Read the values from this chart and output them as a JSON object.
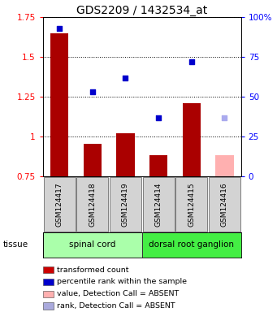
{
  "title": "GDS2209 / 1432534_at",
  "samples": [
    "GSM124417",
    "GSM124418",
    "GSM124419",
    "GSM124414",
    "GSM124415",
    "GSM124416"
  ],
  "bar_values": [
    1.65,
    0.955,
    1.02,
    0.885,
    1.21,
    0.885
  ],
  "bar_colors": [
    "#aa0000",
    "#aa0000",
    "#aa0000",
    "#aa0000",
    "#aa0000",
    "#ffb0b0"
  ],
  "dot_values": [
    1.68,
    1.28,
    1.37,
    1.115,
    1.47,
    1.115
  ],
  "dot_colors": [
    "#0000cc",
    "#0000cc",
    "#0000cc",
    "#0000cc",
    "#0000cc",
    "#aaaaee"
  ],
  "ylim_left": [
    0.75,
    1.75
  ],
  "ylim_right": [
    0,
    100
  ],
  "yticks_left": [
    0.75,
    1.0,
    1.25,
    1.5,
    1.75
  ],
  "yticks_right": [
    0,
    25,
    50,
    75,
    100
  ],
  "ytick_labels_left": [
    "0.75",
    "1",
    "1.25",
    "1.5",
    "1.75"
  ],
  "ytick_labels_right": [
    "0",
    "25",
    "50",
    "75",
    "100%"
  ],
  "baseline": 0.75,
  "groups": [
    {
      "label": "spinal cord",
      "indices": [
        0,
        1,
        2
      ],
      "color": "#aaffaa"
    },
    {
      "label": "dorsal root ganglion",
      "indices": [
        3,
        4,
        5
      ],
      "color": "#44ee44"
    }
  ],
  "tissue_label": "tissue",
  "legend_items": [
    {
      "color": "#cc0000",
      "label": "transformed count"
    },
    {
      "color": "#0000cc",
      "label": "percentile rank within the sample"
    },
    {
      "color": "#ffb0b0",
      "label": "value, Detection Call = ABSENT"
    },
    {
      "color": "#aaaadd",
      "label": "rank, Detection Call = ABSENT"
    }
  ],
  "background_color": "#ffffff",
  "title_fontsize": 10,
  "tick_fontsize": 7.5,
  "label_fontsize": 7.5
}
